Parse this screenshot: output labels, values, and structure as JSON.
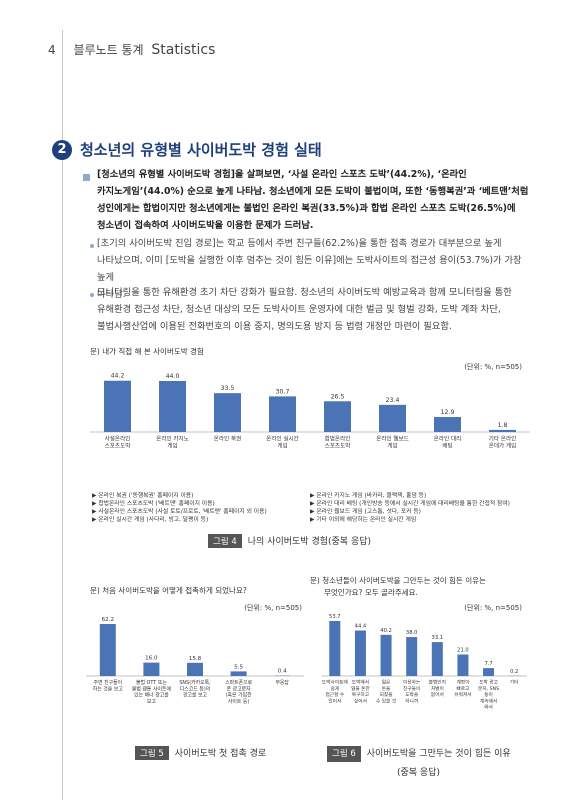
{
  "header": {
    "page_number": "4",
    "title_ko": "블루노트 통계",
    "title_en": "Statistics"
  },
  "section": {
    "number": "2",
    "title": "청소년의 유형별 사이버도박 경험 실태"
  },
  "paragraphs": {
    "main": [
      "[청소년의 유형별 사이버도박 경험]을 살펴보면, ‘사설 온라인 스포츠 도박’(44.2%), ‘온라인",
      "카지노게임’(44.0%) 순으로 높게 나타남. 청소년에게 모든 도박이 불법이며, 또한 ‘동행복권’과 ‘베트맨’처럼",
      "성인에게는 합법이지만 청소년에게는 불법인 온라인 복권(33.5%)과 합법 온라인 스포츠 도박(26.5%)에",
      "청소년이 접속하여 사이버도박을 이용한 문제가 드러남."
    ],
    "bullet1": [
      "[초기의 사이버도박 진입 경로]는 학교 등에서 주변 친구들(62.2%)을 통한 접촉 경로가 대부분으로 높게",
      "나타났으며, 이미 [도박을 실행한 이후 멈추는 것이 힘든 이유]에는 도박사이트의 접근성 용이(53.7%)가 가장 높게",
      "나타남."
    ],
    "bullet2": [
      "모니터링을 통한 유해환경 초기 차단 강화가 필요함. 청소년의 사이버도박 예방교육과 함께 모니터링을 통한",
      "유해환경 접근성 차단, 청소년 대상의 모든 도박사이트 운영자에 대한 벌금 및 형벌 강화, 도박 계좌 차단,",
      "불법사행산업에 이용된 전화번호의 이용 중지, 명의도용 방지 등 법령 개정안 마련이 필요함."
    ]
  },
  "chart_data": [
    {
      "type": "bar",
      "title": "문) 내가 직접 해 본 사이버도박 경험",
      "unit": "(단위: %, n=505)",
      "categories": [
        [
          "사설온라인",
          "스포츠도박"
        ],
        [
          "온라인 카지노",
          "게임"
        ],
        [
          "온라인 복권"
        ],
        [
          "온라인 실시간",
          "게임"
        ],
        [
          "합법온라인",
          "스포츠도박"
        ],
        [
          "온라인 웹보드",
          "게임"
        ],
        [
          "온라인 대리",
          "배팅"
        ],
        [
          "기타 온라인",
          "온데가 게임"
        ]
      ],
      "values": [
        44.2,
        44.0,
        33.5,
        30.7,
        26.5,
        23.4,
        12.9,
        1.8
      ],
      "ylim": [
        0,
        50
      ],
      "bar_color": "#4a74b5"
    },
    {
      "type": "bar",
      "title": "문) 처음 사이버도박을 어떻게 접촉하게 되었나요?",
      "unit": "(단위: %, n=505)",
      "categories": [
        [
          "주변 친구들이",
          "하는 것을 보고"
        ],
        [
          "불법 OTT 또는",
          "불법 웹툰 사이트에",
          "있는 배너 광고를",
          "보고"
        ],
        [
          "SNS(카카오톡,",
          "디스코드 등)의",
          "광고를 보고"
        ],
        [
          "스마트폰으로",
          "온 광고문자",
          "(혹은 가입한",
          "사이트 등)"
        ],
        [
          "무응답"
        ]
      ],
      "values": [
        62.2,
        16.0,
        15.8,
        5.5,
        0.4
      ],
      "ylim": [
        0,
        70
      ],
      "bar_color": "#4a74b5"
    },
    {
      "type": "bar",
      "title": "문) 청소년들이 사이버도박을 그만두는 것이 힘든 이유는 무엇인가요? 모두 골라주세요.",
      "title_lines": [
        "문) 청소년들이 사이버도박을 그만두는 것이 힘든 이유는",
        "무엇인가요? 모두 골라주세요."
      ],
      "unit": "(단위: %, n=505)",
      "categories": [
        [
          "도박사이트에",
          "쉽게",
          "접근할 수",
          "있어서"
        ],
        [
          "도박해서",
          "잃을 돈만",
          "복구하고",
          "싶어서"
        ],
        [
          "잃은",
          "돈을",
          "되찾을",
          "수 있을 것"
        ],
        [
          "이용하는",
          "친구들이",
          "도박을",
          "하니까"
        ],
        [
          "불법인지",
          "처벌이",
          "없어서"
        ],
        [
          "계정이",
          "빠르고",
          "쉬워져서"
        ],
        [
          "도박 광고",
          "문자, SNS",
          "등이",
          "계속해서",
          "와서"
        ],
        [
          "기타"
        ]
      ],
      "values": [
        53.7,
        44.4,
        40.2,
        38.0,
        33.1,
        21.0,
        7.7,
        0.2
      ],
      "ylim": [
        0,
        60
      ],
      "bar_color": "#4a74b5"
    }
  ],
  "legend": {
    "left": [
      "온라인 복권 ('동행복권' 홈페이지 이용)",
      "합법온라인 스포츠도박 ('베트맨' 홈페이지 이용)",
      "사설온라인 스포츠도박 (사설 토토/프로토, '베트맨' 홈페이지 외 이용)",
      "온라인 실시간 게임 (사다리, 빙고, 달팽이 등)"
    ],
    "right": [
      "온라인 카지노 게임 (바카라, 블랙잭, 홀덤 등)",
      "온라인 대리 배팅 (개인방송 등에서 실시간 게임에 대리배팅을 통한 간접적 참여)",
      "온라인 웹보드 게임 (고스톱, 섯다, 포커 등)",
      "기타 이외에 해당하는 온라인 실시간 게임"
    ]
  },
  "figures": {
    "fig4": {
      "tag": "그림 4",
      "caption": "나의 사이버도박 경험(중복 응답)"
    },
    "fig5": {
      "tag": "그림 5",
      "caption": "사이버도박 첫 접촉 경로"
    },
    "fig6": {
      "tag": "그림 6",
      "caption_line1": "사이버도박을 그만두는 것이 힘든 이유",
      "caption_line2": "(중복 응답)"
    }
  }
}
